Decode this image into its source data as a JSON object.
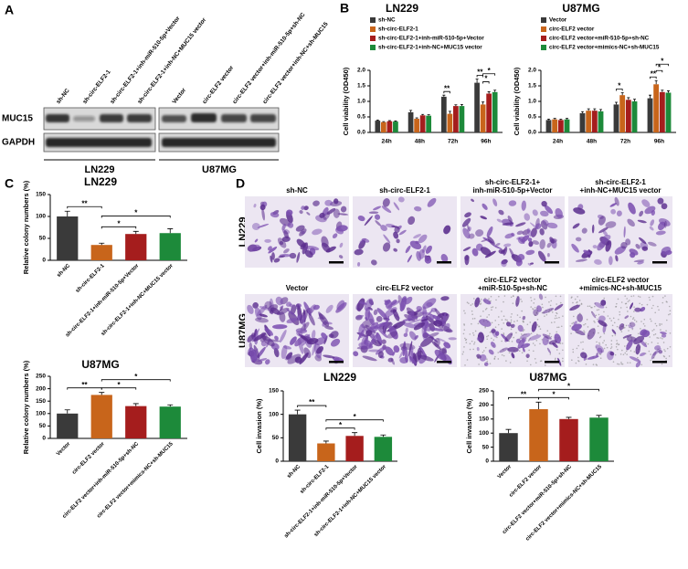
{
  "figure": {
    "panels": [
      "A",
      "B",
      "C",
      "D"
    ],
    "blot": {
      "lanes_left": [
        "sh-NC",
        "sh-circ-ELF2-1",
        "sh-circ-ELF2-1+inh-miR-510-5p+Vector",
        "sh-circ-ELF2-1+inh-NC+MUC15 vector"
      ],
      "lanes_right": [
        "Vector",
        "circ-ELF2 vector",
        "circ-ELF2 vector+inh-miR-510-5p+sh-NC",
        "circ-ELF2 vector+inh-NC+sh-MUC15"
      ],
      "proteins": [
        "MUC15",
        "GAPDH"
      ],
      "groups": [
        "LN229",
        "U87MG"
      ]
    },
    "micrographs": {
      "rows": [
        "LN229",
        "U87MG"
      ],
      "labels": [
        [
          [
            "sh-NC"
          ],
          [
            "sh-circ-ELF2-1"
          ],
          [
            "sh-circ-ELF2-1+",
            "inh-miR-510-5p+Vector"
          ],
          [
            "sh-circ-ELF2-1",
            "+inh-NC+MUC15 vector"
          ]
        ],
        [
          [
            "Vector"
          ],
          [
            "circ-ELF2 vector"
          ],
          [
            "circ-ELF2 vector",
            "+miR-510-5p+sh-NC"
          ],
          [
            "circ-ELF2 vector",
            "+mimics-NC+sh-MUC15"
          ]
        ]
      ]
    }
  },
  "chart_data": [
    {
      "type": "grouped-bar",
      "title": "LN229",
      "y_label": "Cell viability (OD450)",
      "categories": [
        "24h",
        "48h",
        "72h",
        "96h"
      ],
      "series": [
        {
          "name": "sh-NC",
          "color": "#3a3a3a",
          "values": [
            0.38,
            0.65,
            1.15,
            1.6
          ],
          "errors": [
            0.02,
            0.06,
            0.05,
            0.12
          ]
        },
        {
          "name": "sh-circ-ELF2-1",
          "color": "#c8651b",
          "values": [
            0.33,
            0.44,
            0.6,
            0.9
          ],
          "errors": [
            0.02,
            0.03,
            0.08,
            0.08
          ]
        },
        {
          "name": "sh-circ-ELF2-1+inh-miR-510-5p+Vector",
          "color": "#a51d1d",
          "values": [
            0.36,
            0.55,
            0.85,
            1.25
          ],
          "errors": [
            0.02,
            0.03,
            0.04,
            0.06
          ]
        },
        {
          "name": "sh-circ-ELF2-1+inh-NC+MUC15 vector",
          "color": "#1d8a3a",
          "values": [
            0.35,
            0.54,
            0.85,
            1.3
          ],
          "errors": [
            0.02,
            0.03,
            0.05,
            0.06
          ]
        }
      ],
      "ylim": [
        0,
        2
      ],
      "yticks": [
        {
          "value": 0,
          "label": "0.0"
        },
        {
          "value": 0.5,
          "label": "0.5"
        },
        {
          "value": 1,
          "label": "1.0"
        },
        {
          "value": 1.5,
          "label": "1.5"
        },
        {
          "value": 2,
          "label": "2.0"
        }
      ],
      "annotations": [
        "**",
        "**",
        "*",
        "*"
      ]
    },
    {
      "type": "grouped-bar",
      "title": "U87MG",
      "y_label": "Cell viability (OD450)",
      "categories": [
        "24h",
        "48h",
        "72h",
        "96h"
      ],
      "series": [
        {
          "name": "Vector",
          "color": "#3a3a3a",
          "values": [
            0.4,
            0.62,
            0.9,
            1.1
          ],
          "errors": [
            0.03,
            0.05,
            0.07,
            0.1
          ]
        },
        {
          "name": "circ-ELF2 vector",
          "color": "#c8651b",
          "values": [
            0.42,
            0.7,
            1.2,
            1.55
          ],
          "errors": [
            0.03,
            0.06,
            0.08,
            0.12
          ]
        },
        {
          "name": "circ-ELF2 vector+miR-510-5p+sh-NC",
          "color": "#a51d1d",
          "values": [
            0.4,
            0.7,
            1.05,
            1.3
          ],
          "errors": [
            0.03,
            0.06,
            0.07,
            0.06
          ]
        },
        {
          "name": "circ-ELF2 vector+mimics-NC+sh-MUC15",
          "color": "#1d8a3a",
          "values": [
            0.42,
            0.68,
            1.0,
            1.28
          ],
          "errors": [
            0.03,
            0.06,
            0.07,
            0.06
          ]
        }
      ],
      "ylim": [
        0,
        2
      ],
      "yticks": [
        {
          "value": 0,
          "label": "0.0"
        },
        {
          "value": 0.5,
          "label": "0.5"
        },
        {
          "value": 1,
          "label": "1.0"
        },
        {
          "value": 1.5,
          "label": "1.5"
        },
        {
          "value": 2,
          "label": "2.0"
        }
      ],
      "annotations": [
        "*",
        "**",
        "*",
        "*"
      ]
    },
    {
      "type": "bar",
      "title": "LN229",
      "y_label": "Relative colony numbers (%)",
      "categories": [
        "sh-NC",
        "sh-circ-ELF2-1",
        "sh-circ-ELF2-1+inh-miR-510-5p+Vector",
        "sh-circ-ELF2-1+inh-NC+MUC15 vector"
      ],
      "values": [
        100,
        35,
        60,
        62
      ],
      "errors": [
        12,
        4,
        6,
        10
      ],
      "colors": [
        "#3a3a3a",
        "#c8651b",
        "#a51d1d",
        "#1d8a3a"
      ],
      "ylim": [
        0,
        150
      ],
      "yticks": [
        0,
        50,
        100,
        150
      ],
      "annotations": [
        "**",
        "*",
        "*"
      ]
    },
    {
      "type": "bar",
      "title": "U87MG",
      "y_label": "Relative colony numbers (%)",
      "categories": [
        "Vector",
        "circ-ELF2 vector",
        "circ-ELF2 vector+inh-miR-510-5p+sh-NC",
        "circ-ELF2 vector+mimics-NC+sh-MUC15"
      ],
      "values": [
        100,
        175,
        130,
        128
      ],
      "errors": [
        15,
        10,
        10,
        7
      ],
      "colors": [
        "#3a3a3a",
        "#c8651b",
        "#a51d1d",
        "#1d8a3a"
      ],
      "ylim": [
        0,
        250
      ],
      "yticks": [
        0,
        50,
        100,
        150,
        200,
        250
      ],
      "annotations": [
        "**",
        "*",
        "*"
      ]
    },
    {
      "type": "bar",
      "title": "LN229",
      "y_label": "Cell invasion (%)",
      "categories": [
        "sh-NC",
        "sh-circ-ELF2-1",
        "sh-circ-ELF2-1+inh-miR-510-5p+Vector",
        "sh-circ-ELF2-1+inh-NC+MUC15 vector"
      ],
      "values": [
        100,
        38,
        54,
        52
      ],
      "errors": [
        9,
        5,
        7,
        4
      ],
      "colors": [
        "#3a3a3a",
        "#c8651b",
        "#a51d1d",
        "#1d8a3a"
      ],
      "ylim": [
        0,
        150
      ],
      "yticks": [
        0,
        50,
        100,
        150
      ],
      "annotations": [
        "**",
        "*",
        "*"
      ]
    },
    {
      "type": "bar",
      "title": "U87MG",
      "y_label": "Cell invasion (%)",
      "categories": [
        "Vector",
        "circ-ELF2 vector",
        "circ-ELF2 vector+miR-510-5p+sh-NC",
        "circ-ELF2 vector+mimics-NC+sh-MUC15"
      ],
      "values": [
        100,
        185,
        150,
        155
      ],
      "errors": [
        13,
        25,
        6,
        8
      ],
      "colors": [
        "#3a3a3a",
        "#c8651b",
        "#a51d1d",
        "#1d8a3a"
      ],
      "ylim": [
        0,
        250
      ],
      "yticks": [
        0,
        50,
        100,
        150,
        200,
        250
      ],
      "annotations": [
        "**",
        "*",
        "*"
      ]
    }
  ]
}
